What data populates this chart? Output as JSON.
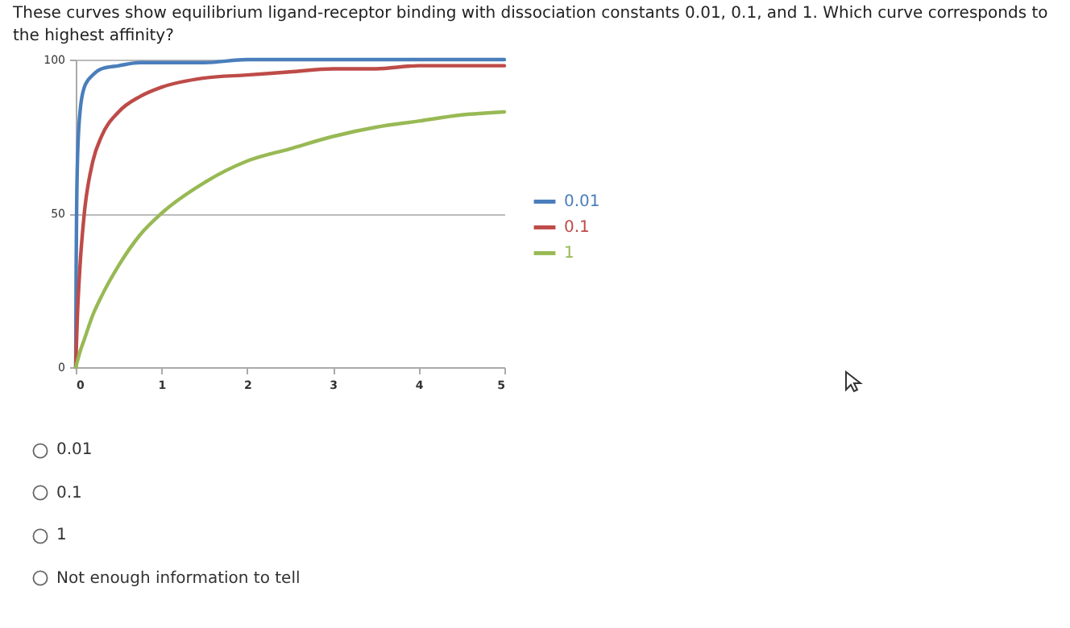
{
  "chart_data": {
    "type": "line",
    "title": "These curves show equilibrium ligand-receptor binding with dissociation constants 0.01, 0.1, and 1. Which curve corresponds to the highest affinity?",
    "x": [
      0,
      0.005,
      0.01,
      0.02,
      0.05,
      0.1,
      0.2,
      0.3,
      0.5,
      0.75,
      1,
      1.5,
      2,
      2.5,
      3,
      3.5,
      4,
      4.5,
      5
    ],
    "series": [
      {
        "name": "0.01",
        "color": "#4a7ebb",
        "values": [
          0,
          33,
          50,
          67,
          83,
          91,
          95,
          97,
          98,
          99,
          99,
          99,
          100,
          100,
          100,
          100,
          100,
          100,
          100
        ]
      },
      {
        "name": "0.1",
        "color": "#be4b48",
        "values": [
          0,
          5,
          9,
          17,
          33,
          50,
          67,
          75,
          83,
          88,
          91,
          94,
          95,
          96,
          97,
          97,
          98,
          98,
          98
        ]
      },
      {
        "name": "1",
        "color": "#98b954",
        "values": [
          0,
          0,
          1,
          2,
          5,
          9,
          17,
          23,
          33,
          43,
          50,
          60,
          67,
          71,
          75,
          78,
          80,
          82,
          83
        ]
      }
    ],
    "xlim": [
      0,
      5
    ],
    "xticks": [
      0,
      1,
      2,
      3,
      4,
      5
    ],
    "ylim": [
      0,
      100
    ],
    "yticks": [
      0,
      50,
      100
    ],
    "grid": "y",
    "legend": "right",
    "marker": "none",
    "line_style": "solid",
    "annotations": [
      "0.01",
      "0.1",
      "1",
      "Not enough information to tell"
    ]
  }
}
